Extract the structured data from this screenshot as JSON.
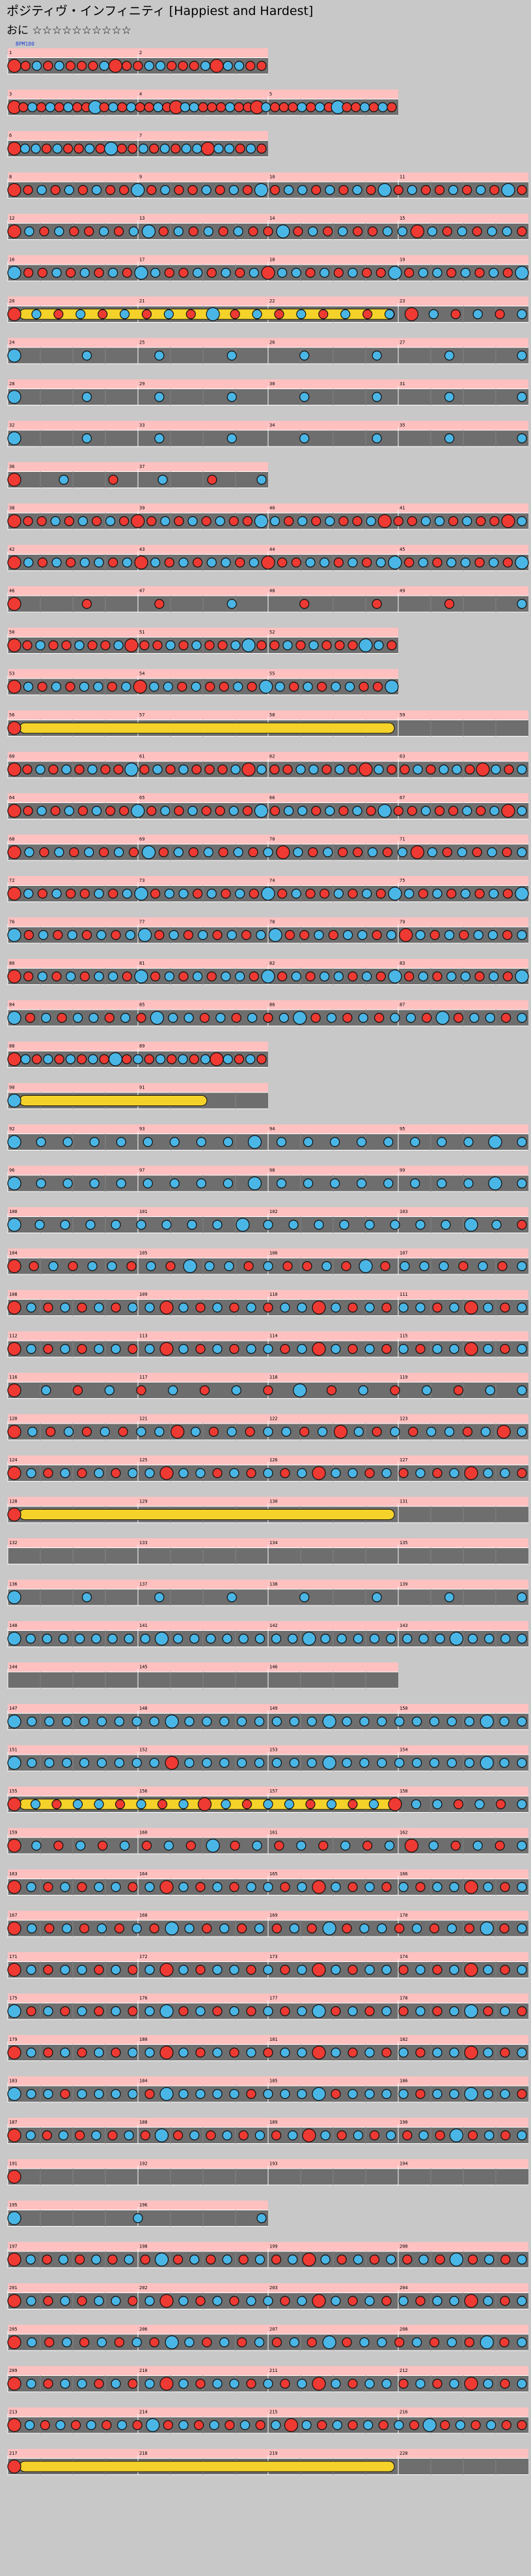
{
  "song": {
    "title": "ポジティヴ・インフィニティ [Happiest and Hardest]",
    "difficulty_label": "おに",
    "stars": "☆☆☆☆☆☆☆☆☆☆",
    "level": 10
  },
  "colors": {
    "background": "#c8c8c8",
    "lane": "#6e6e6e",
    "lane_border": "#ffffff",
    "pink_band": "#ffc0c0",
    "don": "#ee3a32",
    "ka": "#4ab6e6",
    "roll": "#f5d22a",
    "roll_orange": "#f0b040",
    "note_outline": "#101010",
    "annotation_red": "#d01818",
    "annotation_blue": "#2040d0"
  },
  "chart_data": {
    "type": "taiko-score",
    "first_label": "BPM180",
    "rows": [
      {
        "measures": [
          "1",
          "2"
        ],
        "pattern": "ddkdkdddkdddkkdddkdkkdd",
        "roll": false
      },
      {
        "measures": [
          "3",
          "4",
          "5"
        ],
        "pattern": "ddkdkdkddkdkdkddkddkkdddkdddkdddkdkdkddkdkd",
        "roll": false
      },
      {
        "measures": [
          "6",
          "7"
        ],
        "pattern": "dkkdkddkdkddkdkdkkdkkdkd",
        "roll": false
      },
      {
        "measures": [
          "8",
          "9",
          "10",
          "11"
        ],
        "pattern": "ddkdkdkddkdkddkdkdkdkkdkdkdkdkddkdkdkd",
        "roll": false
      },
      {
        "measures": [
          "12",
          "13",
          "14",
          "15"
        ],
        "pattern": "dkdkddkdkkdkdkdkddkdkdkddkkdkdkdkkd",
        "roll": false
      },
      {
        "measures": [
          "16",
          "17",
          "18",
          "19"
        ],
        "pattern": "kddkdkdkdkkddkdkdkdkkdkdkddkdkkdkdkdk",
        "roll": false
      },
      {
        "measures": [
          "20",
          "21",
          "22",
          "23"
        ],
        "pattern": "dkdkdkdkdkdkdkdkdkdkdkdk",
        "roll": true
      },
      {
        "measures": [
          "24",
          "25",
          "26",
          "27"
        ],
        "pattern": "kkkkkkkk",
        "roll": false
      },
      {
        "measures": [
          "28",
          "29",
          "30",
          "31"
        ],
        "pattern": "kkkkkkkk",
        "roll": false
      },
      {
        "measures": [
          "32",
          "33",
          "34",
          "35"
        ],
        "pattern": "kkkkkkkk",
        "roll": false
      },
      {
        "measures": [
          "36",
          "37"
        ],
        "pattern": "dkdkdk",
        "roll": false
      },
      {
        "measures": [
          "38",
          "39",
          "40",
          "41"
        ],
        "pattern": "dddkdkdkdddkdkdkddkkdkdkddkdddkkdkdddk",
        "roll": false
      },
      {
        "measures": [
          "42",
          "43",
          "44",
          "45"
        ],
        "pattern": "dkdkdkkdkdkdkdkkdkdddkkdkdkkdkdkkdkdk",
        "roll": false
      },
      {
        "measures": [
          "46",
          "47",
          "48",
          "49"
        ],
        "pattern": "dddkdddk",
        "roll": false
      },
      {
        "measures": [
          "50",
          "51",
          "52"
        ],
        "pattern": "ddkddkddkdddkdkddkkddkdkdddkkd",
        "roll": false
      },
      {
        "measures": [
          "53",
          "54",
          "55"
        ],
        "pattern": "dkdkdkkdkdkkdkddkdkkdkdkkddk",
        "roll": false
      },
      {
        "measures": [
          "56",
          "57",
          "58",
          "59"
        ],
        "pattern": "d",
        "roll": true
      },
      {
        "measures": [
          "60",
          "61",
          "62",
          "63"
        ],
        "pattern": "ddkdkdkddkdkdkdddkdkddkkdkddkddkdkkddkdk",
        "roll": false
      },
      {
        "measures": [
          "64",
          "65",
          "66",
          "67"
        ],
        "pattern": "ddkdkdkddkdkdkddkdkdkkdkdkdkddkddkdkdk",
        "roll": false
      },
      {
        "measures": [
          "68",
          "69",
          "70",
          "71"
        ],
        "pattern": "dkdkdkdkdkdkdkdkdkdkdkddkdkdkdkdkdk",
        "roll": false
      },
      {
        "measures": [
          "72",
          "73",
          "74",
          "75"
        ],
        "pattern": "dkdkddkdkkdkkdkdkdkdkddkdkdkkdkdkdkdk",
        "roll": false
      },
      {
        "measures": [
          "76",
          "77",
          "78",
          "79"
        ],
        "pattern": "kdkdkdkdkkdkdkdkdkkddkdkkdkdkdkdkkdk",
        "roll": false
      },
      {
        "measures": [
          "80",
          "81",
          "82",
          "83"
        ],
        "pattern": "ddkdkdkkdkdkdkdkkdkdkdkkdkdkdkdkkdkdk",
        "roll": false
      },
      {
        "measures": [
          "84",
          "85",
          "86",
          "87"
        ],
        "pattern": "kdkdkkdkdkkkdkdkdkkdkdkdkkdkdkkdk",
        "roll": false
      },
      {
        "measures": [
          "88",
          "89"
        ],
        "pattern": "dkdkdkdkdkdkdkdkdkdkdkd",
        "roll": false
      },
      {
        "measures": [
          "90",
          "91"
        ],
        "pattern": "k",
        "roll": true
      },
      {
        "measures": [
          "92",
          "93",
          "94",
          "95"
        ],
        "pattern": "kkkkkkkkkkkkkkkkkkkk",
        "roll": false
      },
      {
        "measures": [
          "96",
          "97",
          "98",
          "99"
        ],
        "pattern": "kkkkkkkkkkkkkkkkkkkk",
        "roll": false
      },
      {
        "measures": [
          "100",
          "101",
          "102",
          "103"
        ],
        "pattern": "kkkkkkkkkkkkkkkkkkkkd",
        "roll": false
      },
      {
        "measures": [
          "104",
          "105",
          "106",
          "107"
        ],
        "pattern": "ddkdkkdkdkkkdkddkdkdkkkdkdk",
        "roll": false
      },
      {
        "measures": [
          "108",
          "109",
          "110",
          "111"
        ],
        "pattern": "dkdkdkdkkdkdkdkdkkdkdkdkkdkdkdk",
        "roll": false
      },
      {
        "measures": [
          "112",
          "113",
          "114",
          "115"
        ],
        "pattern": "dkdkdkkdkdkdkdkkdkdkdkdkdkkdkdk",
        "roll": false
      },
      {
        "measures": [
          "116",
          "117",
          "118",
          "119"
        ],
        "pattern": "dkdkdkdkdkdkdkdkk",
        "roll": false
      },
      {
        "measures": [
          "120",
          "121",
          "122",
          "123"
        ],
        "pattern": "dkdkdkdkkdkdkdkkdkdkdkdkkdkdk",
        "roll": false
      },
      {
        "measures": [
          "124",
          "125",
          "126",
          "127"
        ],
        "pattern": "dkdkdkdkkdkkdkdkdkdkkdkdkdkdkkd",
        "roll": false
      },
      {
        "measures": [
          "128",
          "129",
          "130",
          "131"
        ],
        "pattern": "d",
        "roll": true
      },
      {
        "measures": [
          "132",
          "133",
          "134",
          "135"
        ],
        "pattern": "",
        "roll": false
      },
      {
        "measures": [
          "136",
          "137",
          "138",
          "139"
        ],
        "pattern": "kkkkkkkk",
        "roll": false
      },
      {
        "measures": [
          "140",
          "141",
          "142",
          "143"
        ],
        "pattern": "kkkkkkkkkkkkkkkkkkkkkkkkkkkkkkkk",
        "roll": false
      },
      {
        "measures": [
          "144",
          "145",
          "146"
        ],
        "pattern": "",
        "roll": false
      },
      {
        "measures": [
          "147",
          "148",
          "149",
          "150"
        ],
        "pattern": "kkkkkkkkkkkkkkkkkkkkkkkkkkkkkk",
        "roll": false
      },
      {
        "measures": [
          "151",
          "152",
          "153",
          "154"
        ],
        "pattern": "kkkkkkkkkdkkkkkkkkkkkkkkkkkkkk",
        "roll": false
      },
      {
        "measures": [
          "155",
          "156",
          "157",
          "158"
        ],
        "pattern": "dkdkkdkdkdkdkkdkdkdkkdkdk",
        "roll": true
      },
      {
        "measures": [
          "159",
          "160",
          "161",
          "162"
        ],
        "pattern": "dkdkdkdkdkdkdkdkdkdkdkdk",
        "roll": false
      },
      {
        "measures": [
          "163",
          "164",
          "165",
          "166"
        ],
        "pattern": "dkdkdkkdkdkdkdkkdkdkdkdkdkkdkdk",
        "roll": false
      },
      {
        "measures": [
          "167",
          "168",
          "169",
          "170"
        ],
        "pattern": "dkdkdkdkdkkdkdkdkdkdkkdkdkdkdk",
        "roll": false
      },
      {
        "measures": [
          "171",
          "172",
          "173",
          "174"
        ],
        "pattern": "dkdkkdkdkdkdkkdkdkdkdkkdkdkdkdk",
        "roll": false
      },
      {
        "measures": [
          "175",
          "176",
          "177",
          "178"
        ],
        "pattern": "kdkdkdkdkkdkdkdkdkkdkdkdkdkkdkd",
        "roll": false
      },
      {
        "measures": [
          "179",
          "180",
          "181",
          "182"
        ],
        "pattern": "dkdkdkdkkdkdkdkdkkdkdkdkdkkdkdk",
        "roll": false
      },
      {
        "measures": [
          "183",
          "184",
          "185",
          "186"
        ],
        "pattern": "kkkdkkkkdkkkkkdkkkkdkkkkdkkkkkd",
        "roll": false
      },
      {
        "measures": [
          "187",
          "188",
          "189",
          "190"
        ],
        "pattern": "dkdkdkdkdkdkdkdkdkdkdkdkdkdkdkdk",
        "roll": false
      },
      {
        "measures": [
          "191",
          "192",
          "193",
          "194"
        ],
        "pattern": "d",
        "roll": false
      },
      {
        "measures": [
          "195",
          "196"
        ],
        "pattern": "kkk",
        "roll": false
      },
      {
        "measures": [
          "197",
          "198",
          "199",
          "200"
        ],
        "pattern": "dkdkdkdkdkdkdkdkdkdkdkdkdkdkdkdk",
        "roll": false
      },
      {
        "measures": [
          "201",
          "202",
          "203",
          "204"
        ],
        "pattern": "dkdkdkkdkdkdkdkkdkdkdkdkdkkdkdk",
        "roll": false
      },
      {
        "measures": [
          "205",
          "206",
          "207",
          "208"
        ],
        "pattern": "dkdkdkdkdkkdkdkdkdkdkkdkdkdkdk",
        "roll": false
      },
      {
        "measures": [
          "209",
          "210",
          "211",
          "212"
        ],
        "pattern": "dkdkkdkdkdkdkkdkdkdkdkkdkdkdkdk",
        "roll": false
      },
      {
        "measures": [
          "213",
          "214",
          "215",
          "216"
        ],
        "pattern": "dkdkdkdkdkdkdkdkdkdkdkdkdkdkdkdkdd",
        "roll": false
      },
      {
        "measures": [
          "217",
          "218",
          "219",
          "220"
        ],
        "pattern": "d",
        "roll": true
      }
    ]
  }
}
